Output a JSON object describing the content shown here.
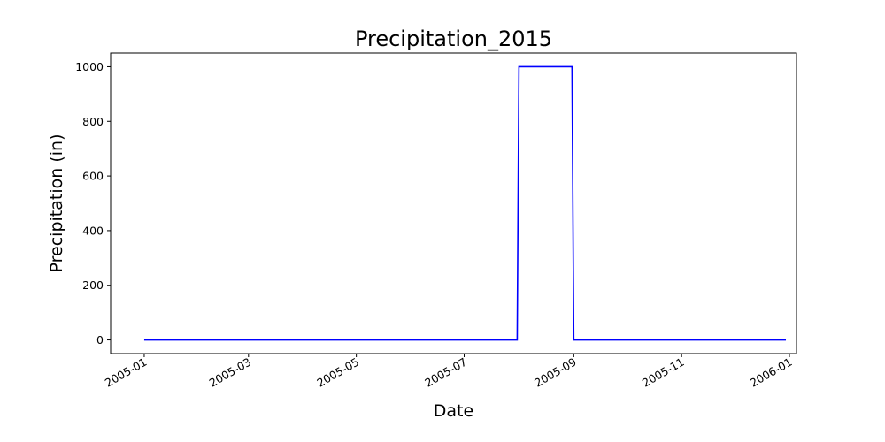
{
  "chart_data": {
    "type": "line",
    "title": "Precipitation_2015",
    "xlabel": "Date",
    "ylabel": "Precipitation (in)",
    "xlim": [
      "2004-12-13",
      "2006-01-05"
    ],
    "ylim": [
      -50,
      1050
    ],
    "x_ticks": [
      "2005-01",
      "2005-03",
      "2005-05",
      "2005-07",
      "2005-09",
      "2005-11",
      "2006-01"
    ],
    "y_ticks": [
      0,
      200,
      400,
      600,
      800,
      1000
    ],
    "grid": false,
    "series": [
      {
        "color": "#0000ff",
        "x": [
          "2005-01-01",
          "2005-07-31",
          "2005-08-01",
          "2005-08-31",
          "2005-09-01",
          "2005-12-30"
        ],
        "values": [
          0,
          0,
          1000,
          1000,
          0,
          0
        ]
      }
    ]
  }
}
